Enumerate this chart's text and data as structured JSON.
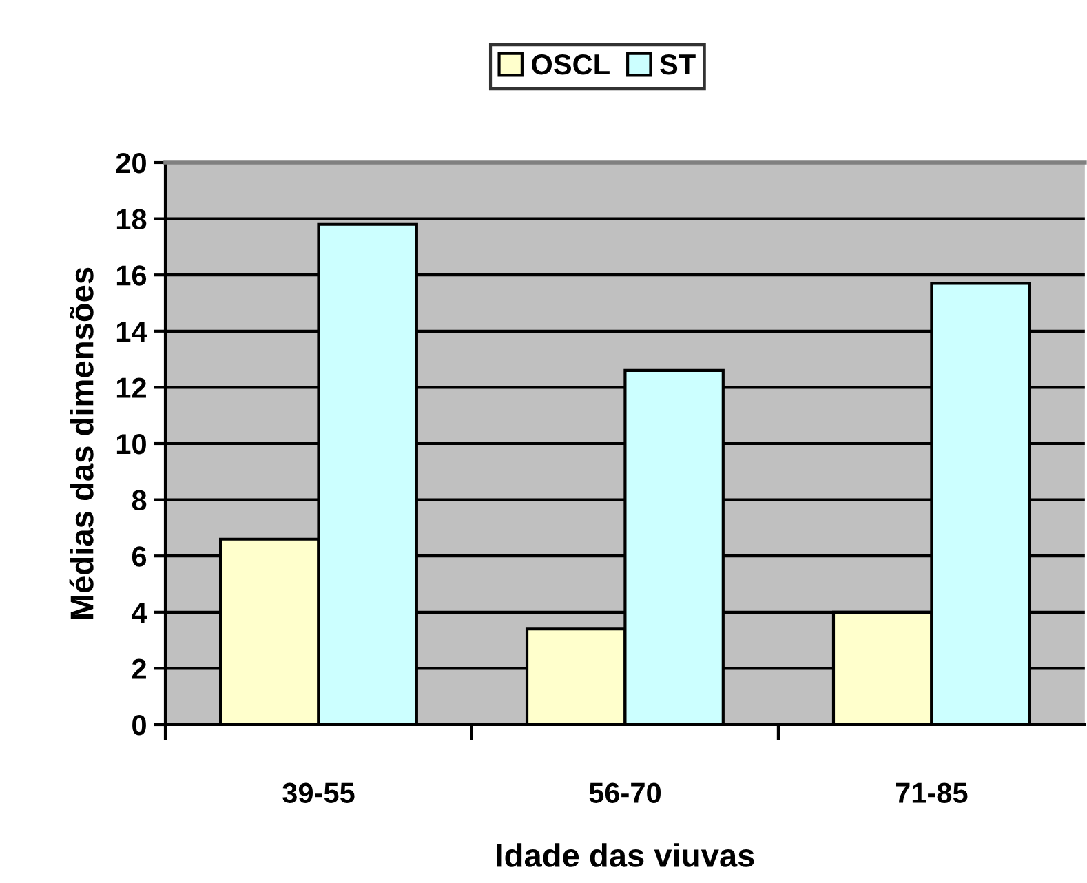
{
  "chart_data": {
    "type": "bar",
    "xlabel": "Idade das viuvas",
    "ylabel": "Médias das dimensões",
    "categories": [
      "39-55",
      "56-70",
      "71-85"
    ],
    "series": [
      {
        "name": "OSCL",
        "color": "#ffffcc",
        "values": [
          6.6,
          3.4,
          4.0
        ]
      },
      {
        "name": "ST",
        "color": "#ccffff",
        "values": [
          17.8,
          12.6,
          15.7
        ]
      }
    ],
    "ylim": [
      0,
      20
    ],
    "yticks": [
      0,
      2,
      4,
      6,
      8,
      10,
      12,
      14,
      16,
      18,
      20
    ],
    "grid": "y",
    "legend": "top"
  }
}
